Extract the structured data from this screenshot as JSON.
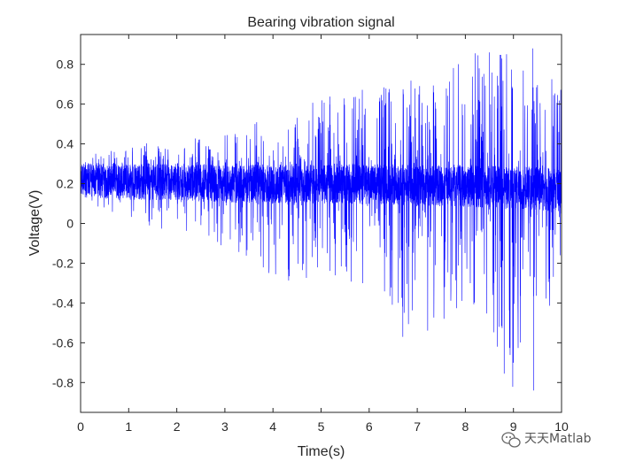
{
  "chart_data": {
    "type": "line",
    "title": "Bearing vibration signal",
    "xlabel": "Time(s)",
    "ylabel": "Voltage(V)",
    "xlim": [
      0,
      10
    ],
    "ylim": [
      -0.95,
      0.95
    ],
    "xticks": [
      0,
      1,
      2,
      3,
      4,
      5,
      6,
      7,
      8,
      9,
      10
    ],
    "yticks": [
      -0.8,
      -0.6,
      -0.4,
      -0.2,
      0,
      0.2,
      0.4,
      0.6,
      0.8
    ],
    "grid": false,
    "legend": "none",
    "series": [
      {
        "color": "#0000ff",
        "description_points": {
          "x": [
            0,
            1,
            2,
            3,
            4,
            5,
            6,
            7,
            8,
            9,
            10
          ],
          "mean": [
            0.22,
            0.21,
            0.21,
            0.2,
            0.2,
            0.2,
            0.2,
            0.19,
            0.19,
            0.18,
            0.17
          ],
          "envelope_upper": [
            0.33,
            0.4,
            0.42,
            0.45,
            0.55,
            0.62,
            0.72,
            0.75,
            0.85,
            0.88,
            0.7
          ],
          "envelope_lower": [
            0.12,
            0.02,
            -0.05,
            -0.12,
            -0.3,
            -0.28,
            -0.32,
            -0.57,
            -0.45,
            -0.84,
            -0.35
          ]
        },
        "peaks": [
          {
            "x": 8.5,
            "y": 0.86
          },
          {
            "x": 9.4,
            "y": 0.88
          },
          {
            "x": 9.42,
            "y": -0.84
          },
          {
            "x": 9.0,
            "y": -0.7
          },
          {
            "x": 6.7,
            "y": -0.57
          },
          {
            "x": 8.7,
            "y": -0.52
          }
        ]
      }
    ]
  },
  "watermark": {
    "text": "天天Matlab",
    "icon": "wechat-icon"
  }
}
